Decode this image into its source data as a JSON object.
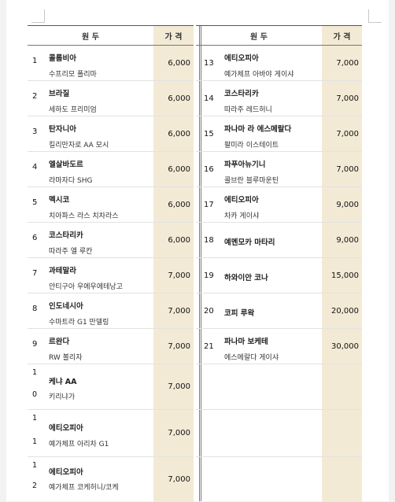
{
  "headers": {
    "name": "원 두",
    "price": "가 격"
  },
  "left_rows": [
    {
      "num": "1",
      "country": "콜롬비아",
      "detail": "수프리모 폴리마",
      "price": "6,000"
    },
    {
      "num": "2",
      "country": "브라질",
      "detail": "세하도 프리미엄",
      "price": "6,000"
    },
    {
      "num": "3",
      "country": "탄자니아",
      "detail": "킬리만자로 AA 모시",
      "price": "6,000"
    },
    {
      "num": "4",
      "country": "엘살바도르",
      "detail": "라마자다 SHG",
      "price": "6,000"
    },
    {
      "num": "5",
      "country": "멕시코",
      "detail": "치아파스 라스 치차라스",
      "price": "6,000"
    },
    {
      "num": "6",
      "country": "코스타리카",
      "detail": "따라주 엘 루칸",
      "price": "6,000"
    },
    {
      "num": "7",
      "country": "과테말라",
      "detail": "안티구아 우에우에테낭고",
      "price": "7,000"
    },
    {
      "num": "8",
      "country": "인도네시아",
      "detail": "수마트라 G1 만델링",
      "price": "7,000"
    },
    {
      "num": "9",
      "country": "르완다",
      "detail": "RW 볼리자",
      "price": "7,000"
    },
    {
      "num_a": "1",
      "num_b": "0",
      "country": "케냐 AA",
      "detail": "키리냐가",
      "price": "7,000"
    },
    {
      "num_a": "1",
      "num_b": "1",
      "country": "에티오피아",
      "detail": "예가체프 아리차 G1",
      "price": "7,000"
    },
    {
      "num_a": "1",
      "num_b": "2",
      "country": "에티오피아",
      "detail": "예가체프 코케허니/코케",
      "price": "7,000"
    }
  ],
  "right_rows": [
    {
      "num": "13",
      "country": "에티오피아",
      "detail": "예가체프 아바야 게이샤",
      "price": "7,000"
    },
    {
      "num": "14",
      "country": "코스타리카",
      "detail": "따라주 레드허니",
      "price": "7,000"
    },
    {
      "num": "15",
      "country": "파나마 라 에스메랄다",
      "detail": "팔미라 이스테이트",
      "price": "7,000"
    },
    {
      "num": "16",
      "country": "파푸아뉴기니",
      "detail": "콜브란 블루마운틴",
      "price": "7,000"
    },
    {
      "num": "17",
      "country": "에티오피아",
      "detail": "차카 게이샤",
      "price": "9,000"
    },
    {
      "num": "18",
      "country": "예멘모카 마타리",
      "detail": "",
      "price": "9,000"
    },
    {
      "num": "19",
      "country": "하와이안 코나",
      "detail": "",
      "price": "15,000"
    },
    {
      "num": "20",
      "country": "코피 루왁",
      "detail": "",
      "price": "20,000"
    },
    {
      "num": "21",
      "country": "파나마 보케테",
      "detail": "에스메랄다 게이샤",
      "price": "30,000"
    }
  ]
}
